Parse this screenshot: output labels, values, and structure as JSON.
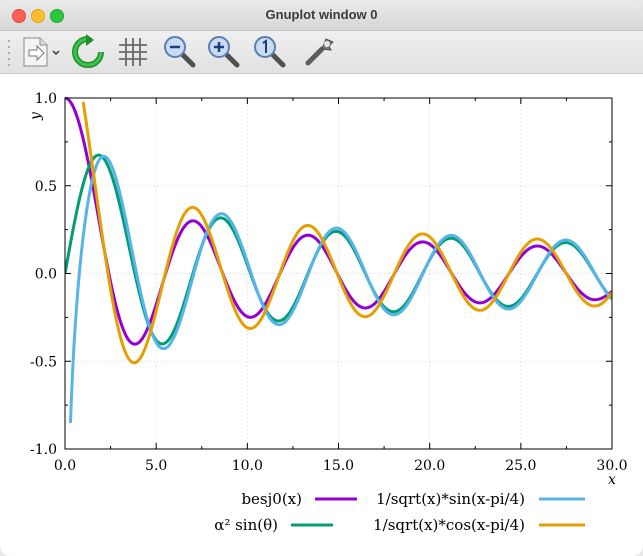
{
  "window": {
    "title": "Gnuplot window 0"
  },
  "toolbar": {
    "buttons": [
      {
        "icon": "export-icon",
        "name": "export-button"
      },
      {
        "icon": "replot-icon",
        "name": "replot-button"
      },
      {
        "icon": "grid-icon",
        "name": "grid-button"
      },
      {
        "icon": "zoom-out-icon",
        "name": "zoom-out-button"
      },
      {
        "icon": "zoom-in-icon",
        "name": "zoom-in-button"
      },
      {
        "icon": "zoom-reset-icon",
        "name": "zoom-reset-button"
      },
      {
        "icon": "settings-icon",
        "name": "settings-button"
      }
    ]
  },
  "chart_data": {
    "type": "line",
    "title": "",
    "xlabel": "x",
    "ylabel": "y",
    "xlim": [
      0,
      30
    ],
    "ylim": [
      -1,
      1
    ],
    "x_ticks": [
      "0.0",
      "5.0",
      "10.0",
      "15.0",
      "20.0",
      "25.0",
      "30.0"
    ],
    "y_ticks": [
      "1.0",
      "0.5",
      "0.0",
      "-0.5",
      "-1.0"
    ],
    "grid": true,
    "legend_position": "bottom",
    "series": [
      {
        "name": "besj0(x)",
        "color": "#9400d3",
        "function": "besj0",
        "points": [
          [
            0,
            1.0
          ],
          [
            2.4,
            0.0
          ],
          [
            3.8,
            -0.4
          ],
          [
            5.5,
            0.0
          ],
          [
            7.0,
            0.3
          ],
          [
            8.7,
            0.0
          ],
          [
            10.2,
            -0.25
          ],
          [
            11.8,
            0.0
          ],
          [
            13.3,
            0.22
          ],
          [
            14.9,
            0.0
          ],
          [
            16.5,
            -0.19
          ],
          [
            18.1,
            0.0
          ],
          [
            19.6,
            0.18
          ],
          [
            21.2,
            0.0
          ],
          [
            22.8,
            -0.16
          ],
          [
            24.4,
            0.0
          ],
          [
            25.9,
            0.15
          ],
          [
            27.5,
            0.0
          ],
          [
            29.1,
            -0.14
          ],
          [
            30,
            -0.09
          ]
        ]
      },
      {
        "name": "α² sin(θ)",
        "color": "#009e73",
        "function": "sqrt2_sin",
        "points": [
          [
            0,
            0.0
          ],
          [
            1.9,
            0.58
          ],
          [
            3.8,
            0.0
          ],
          [
            5.4,
            -0.34
          ],
          [
            7.0,
            0.0
          ],
          [
            8.6,
            0.27
          ],
          [
            10.2,
            0.0
          ],
          [
            11.8,
            -0.23
          ],
          [
            13.3,
            0.0
          ],
          [
            14.9,
            0.2
          ],
          [
            16.5,
            0.0
          ],
          [
            18.0,
            -0.19
          ],
          [
            19.6,
            0.0
          ],
          [
            21.2,
            0.17
          ],
          [
            22.8,
            0.0
          ],
          [
            24.3,
            -0.16
          ],
          [
            25.9,
            0.0
          ],
          [
            27.5,
            0.15
          ],
          [
            29.1,
            0.0
          ],
          [
            30,
            -0.08
          ]
        ]
      },
      {
        "name": "1/sqrt(x)*sin(x-pi/4)",
        "color": "#56b4e9",
        "function": "sin",
        "points": [
          [
            0.3,
            -0.84
          ],
          [
            2.1,
            0.66
          ],
          [
            3.9,
            0.0
          ],
          [
            5.5,
            -0.42
          ],
          [
            7.1,
            0.0
          ],
          [
            8.6,
            0.34
          ],
          [
            10.2,
            0.0
          ],
          [
            11.8,
            -0.29
          ],
          [
            13.4,
            0.0
          ],
          [
            15.0,
            0.26
          ],
          [
            16.5,
            0.0
          ],
          [
            18.1,
            -0.24
          ],
          [
            19.6,
            0.0
          ],
          [
            21.2,
            0.22
          ],
          [
            22.8,
            0.0
          ],
          [
            24.4,
            -0.2
          ],
          [
            26.0,
            0.0
          ],
          [
            27.5,
            0.19
          ],
          [
            29.1,
            0.0
          ],
          [
            30,
            -0.12
          ]
        ]
      },
      {
        "name": "1/sqrt(x)*cos(x-pi/4)",
        "color": "#e69f00",
        "function": "cos",
        "points": [
          [
            1.0,
            1.0
          ],
          [
            2.4,
            0.0
          ],
          [
            3.9,
            -0.5
          ],
          [
            5.5,
            0.0
          ],
          [
            7.1,
            0.37
          ],
          [
            8.6,
            0.0
          ],
          [
            10.2,
            -0.31
          ],
          [
            11.8,
            0.0
          ],
          [
            13.3,
            0.27
          ],
          [
            14.9,
            0.0
          ],
          [
            16.5,
            -0.25
          ],
          [
            18.1,
            0.0
          ],
          [
            19.6,
            0.22
          ],
          [
            21.2,
            0.0
          ],
          [
            22.8,
            -0.21
          ],
          [
            24.4,
            0.0
          ],
          [
            25.9,
            0.19
          ],
          [
            27.5,
            0.0
          ],
          [
            29.1,
            -0.18
          ],
          [
            30,
            -0.09
          ]
        ]
      }
    ]
  }
}
